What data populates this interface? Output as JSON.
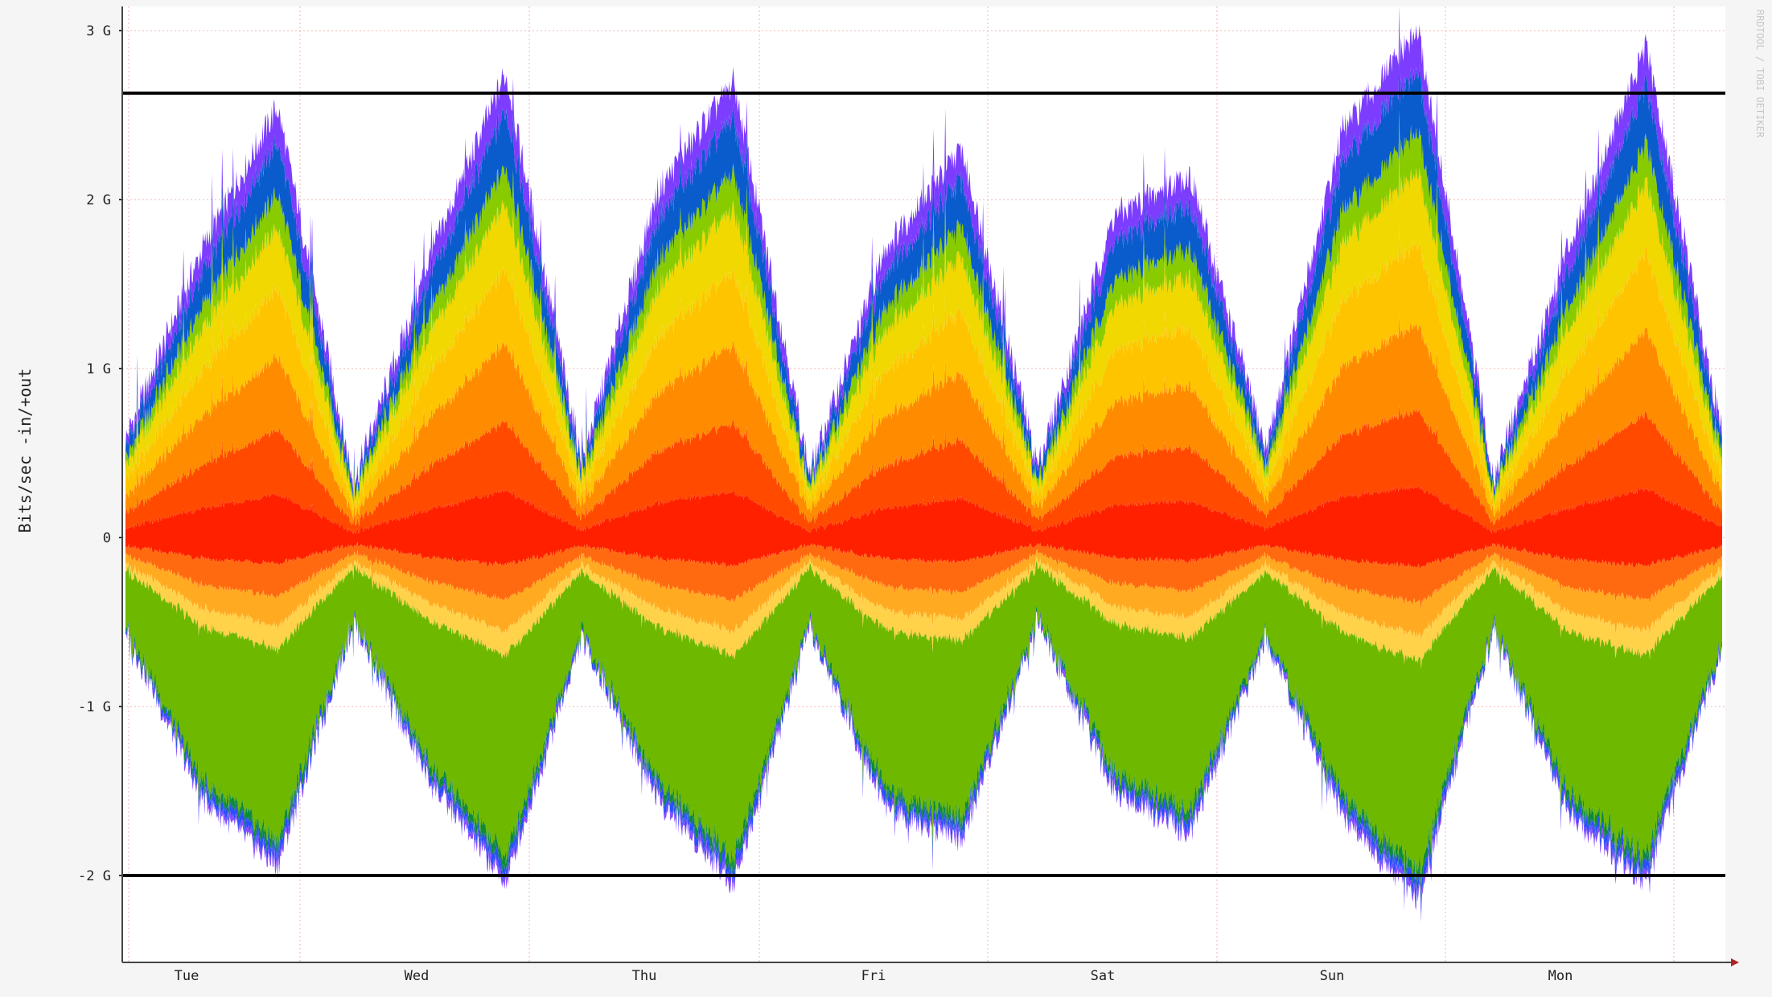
{
  "chart_data": {
    "type": "area",
    "ylabel": "Bits/sec -in/+out",
    "watermark": "RRDTOOL / TOBI OETIKER",
    "ylim": [
      -2.5,
      3.05
    ],
    "y_unit": "bits/sec",
    "y_ticks": [
      {
        "value": 3,
        "label": "3 G"
      },
      {
        "value": 2,
        "label": "2 G"
      },
      {
        "value": 1,
        "label": "1 G"
      },
      {
        "value": 0,
        "label": "0"
      },
      {
        "value": -1,
        "label": "-1 G"
      },
      {
        "value": -2,
        "label": "-2 G"
      }
    ],
    "x_ticks": [
      "Tue",
      "Wed",
      "Thu",
      "Fri",
      "Sat",
      "Sun",
      "Mon"
    ],
    "grid": true,
    "thresholds": [
      2.63,
      -2.0
    ],
    "colors": {
      "threshold": "#000000",
      "grid": "#f2b5b5",
      "out_layers": [
        "#ff2000",
        "#ff4a00",
        "#ff8c00",
        "#ffc400",
        "#f0d800",
        "#88cc00",
        "#0a5ccc",
        "#7d3dff"
      ],
      "in_layers": [
        "#ff2000",
        "#ff6a10",
        "#ffaa20",
        "#ffd24a",
        "#6eb800",
        "#0f8a3a",
        "#2a4dff",
        "#8a4cff"
      ]
    },
    "series_out": [
      {
        "values": [
          0.58,
          1.7,
          2.55,
          0.32,
          1.65,
          2.75,
          0.45,
          2.05,
          2.7,
          0.38,
          1.72,
          2.3,
          0.42,
          1.9,
          2.15,
          0.52,
          2.4,
          3.0,
          0.35,
          1.75,
          2.9,
          0.62
        ]
      }
    ],
    "series_in": [
      {
        "values": [
          -0.55,
          -1.55,
          -1.95,
          -0.5,
          -1.45,
          -2.05,
          -0.6,
          -1.55,
          -2.05,
          -0.55,
          -1.6,
          -1.8,
          -0.5,
          -1.5,
          -1.75,
          -0.6,
          -1.65,
          -2.15,
          -0.55,
          -1.65,
          -2.05,
          -0.65
        ]
      }
    ]
  }
}
